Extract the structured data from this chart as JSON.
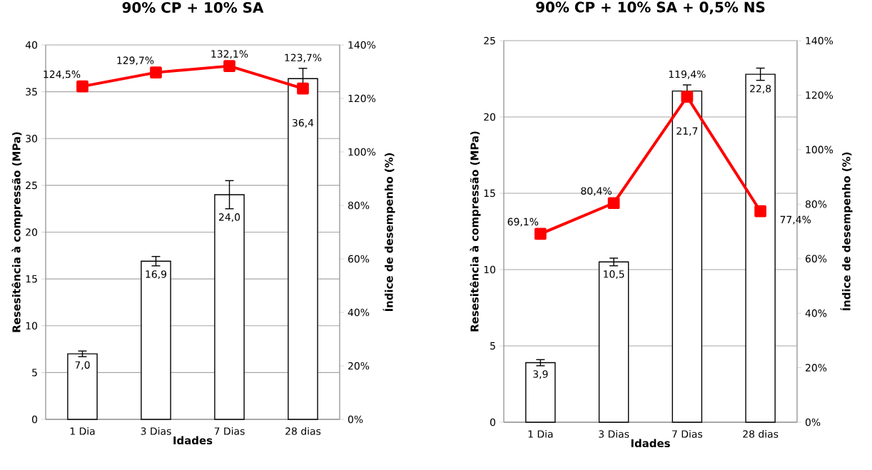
{
  "chart_data": [
    {
      "type": "bar",
      "title": "90% CP + 10% SA",
      "xlabel": "Idades",
      "ylabel": "Resesitência à compressão (MPa)",
      "y2label": "Índice de desempenho (%)",
      "categories": [
        "1 Dia",
        "3 Dias",
        "7 Dias",
        "28 dias"
      ],
      "ylim": [
        0,
        40
      ],
      "yticks": [
        0,
        5,
        10,
        15,
        20,
        25,
        30,
        35,
        40
      ],
      "y2lim": [
        0,
        140
      ],
      "y2ticks": [
        {
          "value": 0,
          "label": "0%"
        },
        {
          "value": 20,
          "label": "20%"
        },
        {
          "value": 40,
          "label": "40%"
        },
        {
          "value": 60,
          "label": "60%"
        },
        {
          "value": 80,
          "label": "80%"
        },
        {
          "value": 100,
          "label": "100%"
        },
        {
          "value": 120,
          "label": "120%"
        },
        {
          "value": 140,
          "label": "140%"
        }
      ],
      "grid": "y",
      "series": [
        {
          "color": "#ffffff",
          "values": [
            7.0,
            16.9,
            24.0,
            36.4
          ],
          "errors": [
            0.3,
            0.5,
            1.5,
            1.1
          ],
          "value_labels": [
            "7,0",
            "16,9",
            "24,0",
            "36,4"
          ]
        },
        {
          "type": "line",
          "axis": "y2",
          "color": "#ff0000",
          "marker": "square",
          "values": [
            124.5,
            129.7,
            132.1,
            123.7
          ],
          "value_labels": [
            "124,5%",
            "129,7%",
            "132,1%",
            "123,7%"
          ]
        }
      ]
    },
    {
      "type": "bar",
      "title": "90% CP + 10% SA + 0,5% NS",
      "xlabel": "Idades",
      "ylabel": "Resesitência à compressão (MPa)",
      "y2label": "Índice de desempenho (%)",
      "categories": [
        "1 Dia",
        "3 Dias",
        "7 Dias",
        "28 dias"
      ],
      "ylim": [
        0,
        25
      ],
      "yticks": [
        0,
        5,
        10,
        15,
        20,
        25
      ],
      "y2lim": [
        0,
        140
      ],
      "y2ticks": [
        {
          "value": 0,
          "label": "0%"
        },
        {
          "value": 20,
          "label": "20%"
        },
        {
          "value": 40,
          "label": "40%"
        },
        {
          "value": 60,
          "label": "60%"
        },
        {
          "value": 80,
          "label": "80%"
        },
        {
          "value": 100,
          "label": "100%"
        },
        {
          "value": 120,
          "label": "120%"
        },
        {
          "value": 140,
          "label": "140%"
        }
      ],
      "grid": "y",
      "series": [
        {
          "color": "#ffffff",
          "values": [
            3.9,
            10.5,
            21.7,
            22.8
          ],
          "errors": [
            0.2,
            0.25,
            0.4,
            0.4
          ],
          "value_labels": [
            "3,9",
            "10,5",
            "21,7",
            "22,8"
          ]
        },
        {
          "type": "line",
          "axis": "y2",
          "color": "#ff0000",
          "marker": "square",
          "values": [
            69.1,
            80.4,
            119.4,
            77.4
          ],
          "value_labels": [
            "69,1%",
            "80,4%",
            "119,4%",
            "77,4%"
          ]
        }
      ]
    }
  ]
}
